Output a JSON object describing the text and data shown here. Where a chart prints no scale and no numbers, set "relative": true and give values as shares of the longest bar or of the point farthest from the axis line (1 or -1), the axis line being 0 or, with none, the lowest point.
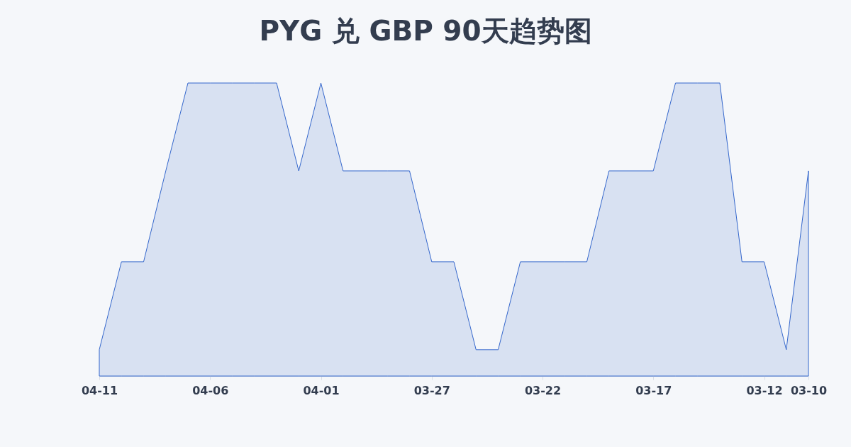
{
  "chart_data": {
    "type": "area",
    "title": "PYG 兑 GBP 90天趋势图",
    "relative": true,
    "color": "#3366cc",
    "categories": [
      "04-11",
      null,
      null,
      null,
      null,
      "04-06",
      null,
      null,
      null,
      null,
      "04-01",
      null,
      null,
      null,
      null,
      "03-27",
      null,
      null,
      null,
      null,
      "03-22",
      null,
      null,
      null,
      null,
      "03-17",
      null,
      null,
      null,
      null,
      "03-12",
      null,
      "03-10"
    ],
    "values": [
      0.09,
      0.39,
      0.39,
      0.7,
      1,
      1,
      1,
      1,
      1,
      0.7,
      1,
      0.7,
      0.7,
      0.7,
      0.7,
      0.39,
      0.39,
      0.09,
      0.09,
      0.39,
      0.39,
      0.39,
      0.39,
      0.7,
      0.7,
      0.7,
      1,
      1,
      1,
      0.39,
      0.39,
      0.09,
      0.7
    ]
  }
}
